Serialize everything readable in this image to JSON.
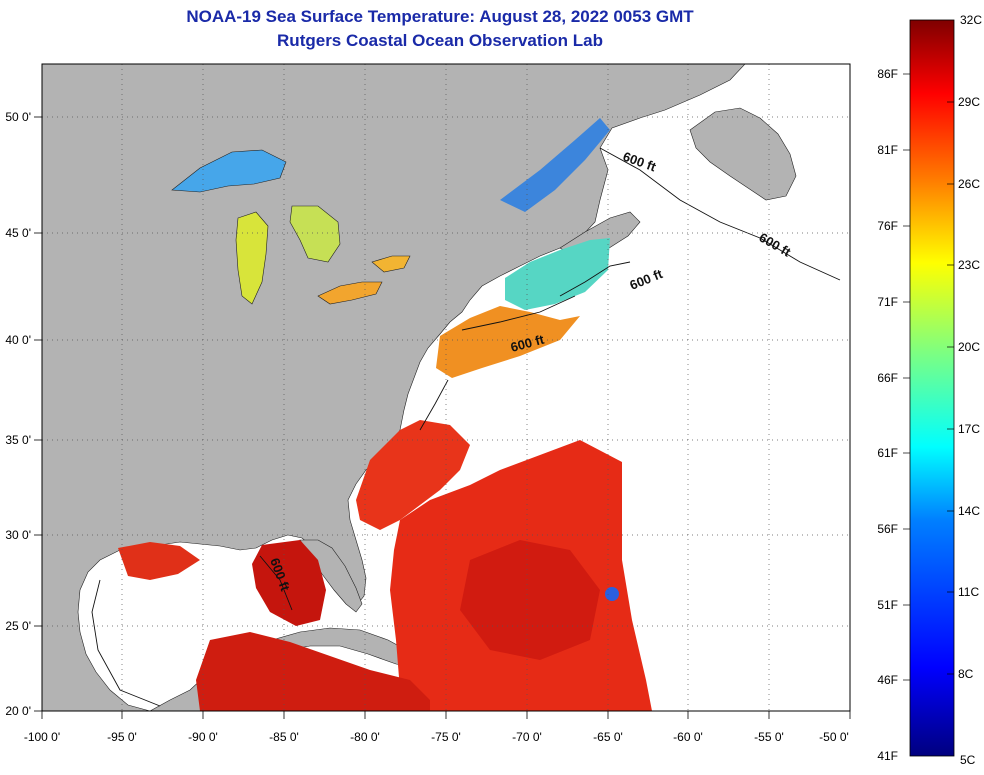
{
  "header": {
    "title": "NOAA-19 Sea Surface Temperature:  August 28, 2022 0053 GMT",
    "subtitle": "Rutgers Coastal Ocean Observation Lab"
  },
  "map": {
    "lon_range": [
      -100,
      -50
    ],
    "lat_range": [
      20,
      52
    ],
    "lon_ticks": [
      "-100 0'",
      "-95 0'",
      "-90 0'",
      "-85 0'",
      "-80 0'",
      "-75 0'",
      "-70 0'",
      "-65 0'",
      "-60 0'",
      "-55 0'",
      "-50 0'"
    ],
    "lat_ticks": [
      "20 0'",
      "25 0'",
      "30 0'",
      "35 0'",
      "40 0'",
      "45 0'",
      "50 0'"
    ],
    "contour_labels": [
      "600 ft",
      "600 ft",
      "600 ft",
      "600 ft",
      "600 ft"
    ],
    "colors": {
      "land": "#b3b3b3",
      "no_data": "#ffffff",
      "grid": "#555555"
    }
  },
  "colorbar": {
    "celsius_labels": [
      "32C",
      "29C",
      "26C",
      "23C",
      "20C",
      "17C",
      "14C",
      "11C",
      "8C",
      "5C"
    ],
    "fahrenheit_labels": [
      "86F",
      "81F",
      "76F",
      "71F",
      "66F",
      "61F",
      "56F",
      "51F",
      "46F",
      "41F"
    ],
    "range_c": [
      5,
      32
    ],
    "colors": [
      "#00007f",
      "#0000ff",
      "#007fff",
      "#00ffff",
      "#7fff7f",
      "#ffff00",
      "#ff7f00",
      "#ff0000",
      "#7f0000"
    ]
  }
}
